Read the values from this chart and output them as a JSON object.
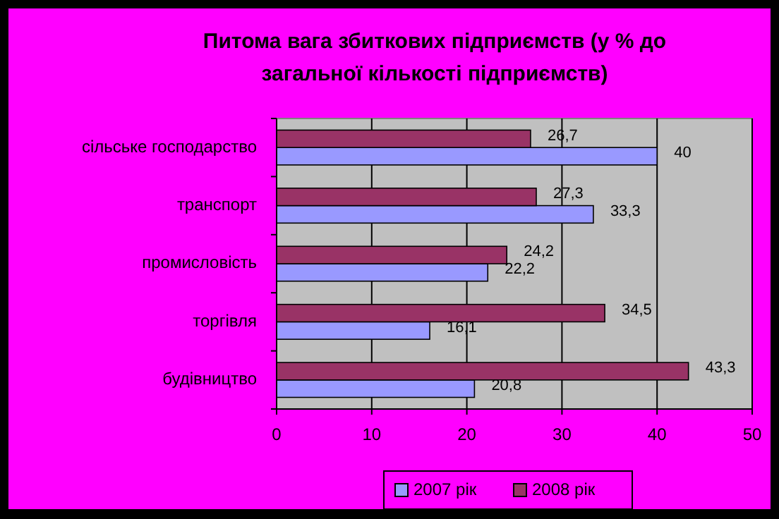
{
  "chart_data": {
    "type": "bar",
    "orientation": "horizontal",
    "title": "Питома вага збиткових підприємств (у % до загальної кількості підприємств)",
    "categories": [
      "сільське господарство",
      "транспорт",
      "промисловість",
      "торгівля",
      "будівництво"
    ],
    "series": [
      {
        "name": "2007 рік",
        "color": "#9999ff",
        "values": [
          40,
          33.3,
          22.2,
          16.1,
          20.8
        ],
        "value_labels": [
          "40",
          "33,3",
          "22,2",
          "16,1",
          "20,8"
        ]
      },
      {
        "name": "2008 рік",
        "color": "#993366",
        "values": [
          26.7,
          27.3,
          24.2,
          34.5,
          43.3
        ],
        "value_labels": [
          "26,7",
          "27,3",
          "24,2",
          "34,5",
          "43,3"
        ]
      }
    ],
    "xlim": [
      0,
      50
    ],
    "xticks": [
      0,
      10,
      20,
      30,
      40,
      50
    ],
    "grid": "x",
    "legend": "bottom"
  }
}
